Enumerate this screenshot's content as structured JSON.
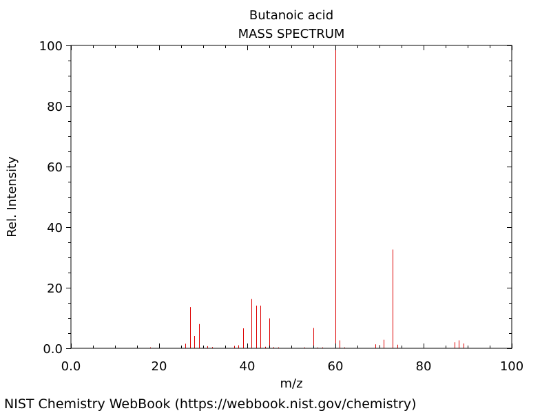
{
  "chart_data": {
    "type": "bar",
    "title": "Butanoic acid",
    "subtitle": "MASS SPECTRUM",
    "xlabel": "m/z",
    "ylabel": "Rel. Intensity",
    "xlim": [
      0,
      100
    ],
    "ylim": [
      0,
      100
    ],
    "xticks": [
      "0.0",
      "20",
      "40",
      "60",
      "80",
      "100"
    ],
    "yticks": [
      "0.0",
      "20",
      "40",
      "60",
      "80",
      "100"
    ],
    "grid": false,
    "peak_color": "#dd0000",
    "peaks": [
      {
        "x": 15,
        "y": 0.8
      },
      {
        "x": 18,
        "y": 0.3
      },
      {
        "x": 26,
        "y": 1.5
      },
      {
        "x": 27,
        "y": 13.6
      },
      {
        "x": 28,
        "y": 4.1
      },
      {
        "x": 29,
        "y": 8.0
      },
      {
        "x": 30,
        "y": 0.4
      },
      {
        "x": 31,
        "y": 0.7
      },
      {
        "x": 32,
        "y": 0.4
      },
      {
        "x": 37,
        "y": 0.8
      },
      {
        "x": 38,
        "y": 1.0
      },
      {
        "x": 39,
        "y": 6.6
      },
      {
        "x": 40,
        "y": 1.2
      },
      {
        "x": 41,
        "y": 16.3
      },
      {
        "x": 42,
        "y": 14.1
      },
      {
        "x": 43,
        "y": 14.1
      },
      {
        "x": 44,
        "y": 0.5
      },
      {
        "x": 45,
        "y": 9.9
      },
      {
        "x": 46,
        "y": 0.4
      },
      {
        "x": 47,
        "y": 0.3
      },
      {
        "x": 53,
        "y": 0.3
      },
      {
        "x": 55,
        "y": 6.7
      },
      {
        "x": 56,
        "y": 0.3
      },
      {
        "x": 57,
        "y": 0.3
      },
      {
        "x": 60,
        "y": 100
      },
      {
        "x": 61,
        "y": 2.6
      },
      {
        "x": 62,
        "y": 0.3
      },
      {
        "x": 69,
        "y": 1.3
      },
      {
        "x": 70,
        "y": 1.1
      },
      {
        "x": 71,
        "y": 2.8
      },
      {
        "x": 73,
        "y": 32.6
      },
      {
        "x": 74,
        "y": 1.2
      },
      {
        "x": 87,
        "y": 2.0
      },
      {
        "x": 88,
        "y": 2.6
      },
      {
        "x": 89,
        "y": 1.6
      }
    ]
  },
  "footer": "NIST Chemistry WebBook (https://webbook.nist.gov/chemistry)"
}
